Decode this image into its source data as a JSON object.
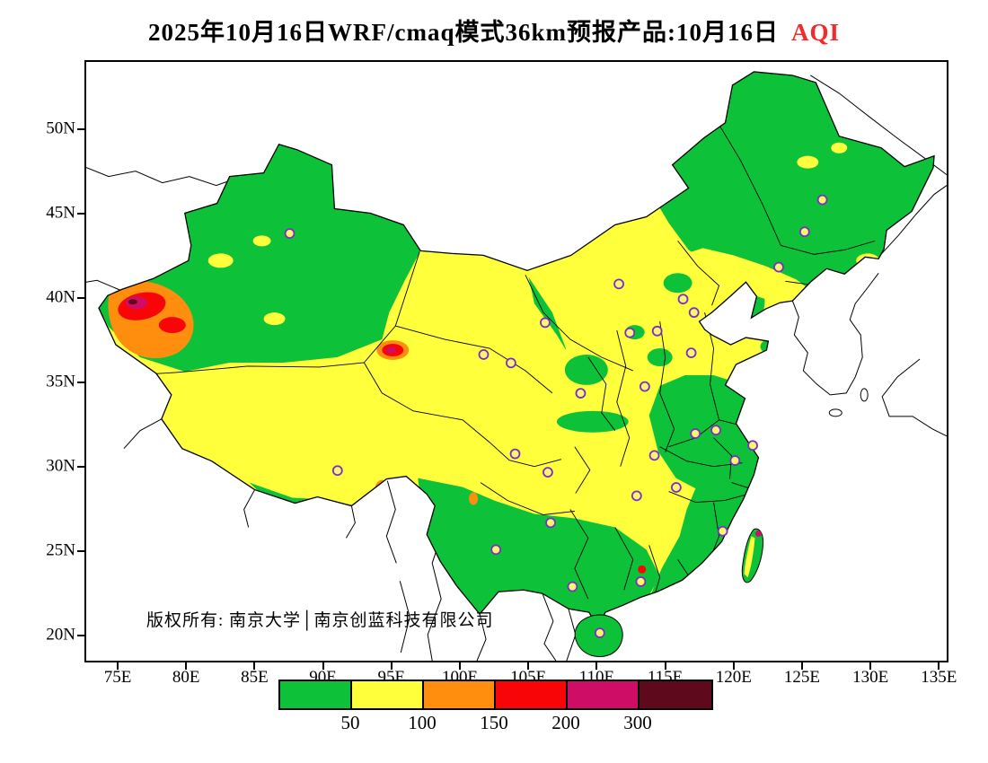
{
  "title": {
    "main": "2025年10月16日WRF/cmaq模式36km预报产品:10月16日",
    "aqi": "AQI"
  },
  "copyright": {
    "text": "版权所有: 南京大学│南京创蓝科技有限公司"
  },
  "axes": {
    "lat": [
      {
        "label": "50N",
        "value": 50
      },
      {
        "label": "45N",
        "value": 45
      },
      {
        "label": "40N",
        "value": 40
      },
      {
        "label": "35N",
        "value": 35
      },
      {
        "label": "30N",
        "value": 30
      },
      {
        "label": "25N",
        "value": 25
      },
      {
        "label": "20N",
        "value": 20
      }
    ],
    "lon": [
      {
        "label": "75E",
        "value": 75
      },
      {
        "label": "80E",
        "value": 80
      },
      {
        "label": "85E",
        "value": 85
      },
      {
        "label": "90E",
        "value": 90
      },
      {
        "label": "95E",
        "value": 95
      },
      {
        "label": "100E",
        "value": 100
      },
      {
        "label": "105E",
        "value": 105
      },
      {
        "label": "110E",
        "value": 110
      },
      {
        "label": "115E",
        "value": 115
      },
      {
        "label": "120E",
        "value": 120
      },
      {
        "label": "125E",
        "value": 125
      },
      {
        "label": "130E",
        "value": 130
      },
      {
        "label": "135E",
        "value": 135
      }
    ]
  },
  "colors": {
    "green": "#0DC239",
    "yellow": "#FFFF3C",
    "orange": "#FF8E0F",
    "red": "#F80507",
    "magenta": "#CE0E66",
    "maroon": "#5E0A1C",
    "marker": "#7A2EC8",
    "marker_fill": "#FFF66E",
    "title_accent": "#F42A2A",
    "sea": "#FFFFFF",
    "outline": "#000000"
  },
  "chart_data": {
    "type": "heatmap",
    "title": "2025年10月16日WRF/cmaq模式36km预报产品:10月16日 AQI",
    "variable": "AQI",
    "model": "WRF/cmaq",
    "resolution": "36km",
    "forecast_date": "2025年10月16日",
    "region": "China",
    "lon_range": [
      72.7,
      135.7
    ],
    "lat_range": [
      18.4,
      54.0
    ],
    "legend": {
      "breaks": [
        50,
        100,
        150,
        200,
        300
      ],
      "labels": [
        "50",
        "100",
        "150",
        "200",
        "300"
      ],
      "color_keys": [
        "green",
        "yellow",
        "orange",
        "red",
        "magenta",
        "maroon"
      ]
    },
    "stations": [
      [
        87.6,
        43.8
      ],
      [
        126.6,
        45.8
      ],
      [
        125.3,
        43.9
      ],
      [
        123.4,
        41.8
      ],
      [
        111.7,
        40.8
      ],
      [
        116.4,
        39.9
      ],
      [
        117.2,
        39.1
      ],
      [
        114.5,
        38.0
      ],
      [
        112.5,
        37.9
      ],
      [
        117.0,
        36.7
      ],
      [
        113.6,
        34.7
      ],
      [
        108.9,
        34.3
      ],
      [
        106.3,
        38.5
      ],
      [
        103.8,
        36.1
      ],
      [
        101.8,
        36.6
      ],
      [
        91.1,
        29.7
      ],
      [
        104.1,
        30.7
      ],
      [
        106.5,
        29.6
      ],
      [
        114.3,
        30.6
      ],
      [
        117.3,
        31.9
      ],
      [
        118.8,
        32.1
      ],
      [
        121.5,
        31.2
      ],
      [
        120.2,
        30.3
      ],
      [
        115.9,
        28.7
      ],
      [
        113.0,
        28.2
      ],
      [
        106.7,
        26.6
      ],
      [
        102.7,
        25.0
      ],
      [
        119.3,
        26.1
      ],
      [
        113.3,
        23.1
      ],
      [
        108.3,
        22.8
      ],
      [
        110.3,
        20.05
      ]
    ]
  }
}
